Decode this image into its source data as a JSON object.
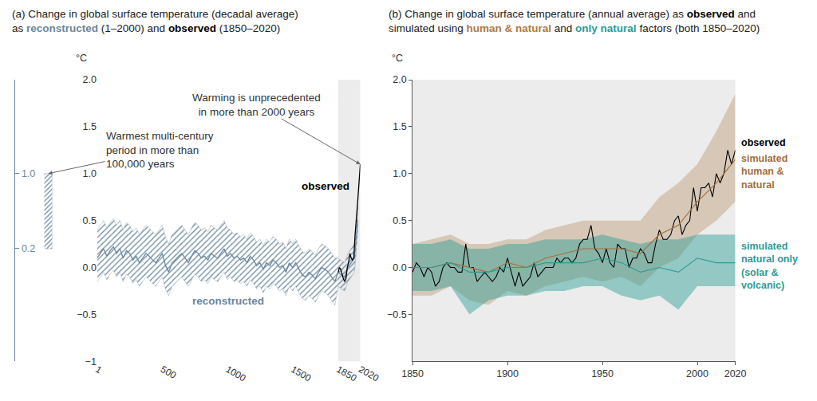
{
  "chart_data": [
    {
      "type": "line",
      "title": [
        [
          "(a) Change in global surface temperature (decadal average)"
        ],
        [
          "as ",
          {
            "text": "reconstructed",
            "color": "#6b879f"
          },
          " (1–2000) and ",
          {
            "text": "observed",
            "color": "#000000"
          },
          " (1850–2020)"
        ]
      ],
      "ylabel": "°C",
      "xlim": [
        1,
        2020
      ],
      "xticks": [
        1,
        500,
        1000,
        1500,
        1850,
        2020
      ],
      "ylim": [
        -1,
        2
      ],
      "yticks": [
        {
          "value": -1,
          "label": "−1"
        },
        {
          "value": -0.5,
          "label": "−0.5"
        },
        {
          "value": 0,
          "label": "0.0"
        },
        {
          "value": 0.5,
          "label": "0.5"
        },
        {
          "value": 1,
          "label": "1.0"
        },
        {
          "value": 1.5,
          "label": "1.5"
        },
        {
          "value": 2,
          "label": "2.0"
        }
      ],
      "shaded_period": [
        1850,
        2020
      ],
      "annotations": [
        "Warming is unprecedented in more than 2000 years",
        "Warmest multi-century period in more than 100,000 years"
      ],
      "range_bar": {
        "low": 0.2,
        "high": 1.0,
        "color": "#6b879f",
        "yticks": [
          {
            "value": 1,
            "label": "1.0"
          },
          {
            "value": 0.2,
            "label": "0.2"
          }
        ]
      },
      "series": [
        {
          "name": "reconstructed",
          "color": "#6b879f",
          "x": [
            1,
            25,
            50,
            75,
            100,
            125,
            150,
            175,
            200,
            225,
            250,
            275,
            300,
            325,
            350,
            375,
            400,
            425,
            450,
            475,
            500,
            525,
            550,
            575,
            600,
            625,
            650,
            675,
            700,
            725,
            750,
            775,
            800,
            825,
            850,
            875,
            900,
            925,
            950,
            975,
            1000,
            1025,
            1050,
            1075,
            1100,
            1125,
            1150,
            1175,
            1200,
            1225,
            1250,
            1275,
            1300,
            1325,
            1350,
            1375,
            1400,
            1425,
            1450,
            1475,
            1500,
            1525,
            1550,
            1575,
            1600,
            1625,
            1650,
            1675,
            1700,
            1725,
            1750,
            1775,
            1800,
            1825,
            1850,
            1875,
            1900,
            1925,
            1950,
            1975,
            2000
          ],
          "values": [
            0.1,
            0.15,
            0.2,
            0.12,
            0.18,
            0.22,
            0.15,
            0.2,
            0.1,
            0.18,
            0.15,
            0.08,
            0.12,
            0.05,
            0.1,
            0.15,
            0.12,
            0.08,
            0.05,
            0.1,
            0.15,
            0.02,
            -0.05,
            0.05,
            0.08,
            0.12,
            0.15,
            0.1,
            0.05,
            0.12,
            0.18,
            0.15,
            0.1,
            0.12,
            0.08,
            0.15,
            0.12,
            0.1,
            0.15,
            0.2,
            0.12,
            0.15,
            0.1,
            0.12,
            0.08,
            0.1,
            0.05,
            0.12,
            0.08,
            0.02,
            0.05,
            -0.02,
            0.05,
            0.02,
            0.08,
            0.05,
            0,
            0.02,
            -0.05,
            0.05,
            0,
            0.05,
            -0.02,
            -0.08,
            -0.1,
            -0.05,
            -0.08,
            -0.12,
            -0.05,
            0,
            -0.02,
            -0.05,
            -0.1,
            -0.15,
            -0.05,
            -0.08,
            -0.1,
            0,
            0.05,
            0.1,
            0.5
          ],
          "low": [
            -0.15,
            -0.1,
            -0.05,
            -0.13,
            -0.07,
            -0.03,
            -0.1,
            -0.05,
            -0.15,
            -0.07,
            -0.1,
            -0.17,
            -0.13,
            -0.2,
            -0.15,
            -0.1,
            -0.13,
            -0.17,
            -0.2,
            -0.15,
            -0.1,
            -0.23,
            -0.3,
            -0.2,
            -0.17,
            -0.13,
            -0.1,
            -0.15,
            -0.2,
            -0.13,
            -0.07,
            -0.1,
            -0.15,
            -0.13,
            -0.17,
            -0.1,
            -0.13,
            -0.15,
            -0.1,
            -0.05,
            -0.13,
            -0.1,
            -0.15,
            -0.13,
            -0.17,
            -0.15,
            -0.2,
            -0.13,
            -0.17,
            -0.23,
            -0.2,
            -0.27,
            -0.2,
            -0.23,
            -0.17,
            -0.2,
            -0.25,
            -0.23,
            -0.3,
            -0.2,
            -0.25,
            -0.2,
            -0.27,
            -0.33,
            -0.35,
            -0.3,
            -0.33,
            -0.37,
            -0.3,
            -0.25,
            -0.27,
            -0.3,
            -0.35,
            -0.4,
            -0.2,
            -0.23,
            -0.25,
            -0.15,
            -0.1,
            -0.05,
            0.35
          ],
          "high": [
            0.4,
            0.45,
            0.5,
            0.42,
            0.48,
            0.52,
            0.45,
            0.5,
            0.4,
            0.48,
            0.45,
            0.38,
            0.42,
            0.35,
            0.4,
            0.45,
            0.42,
            0.38,
            0.35,
            0.4,
            0.45,
            0.32,
            0.25,
            0.35,
            0.38,
            0.42,
            0.45,
            0.4,
            0.35,
            0.42,
            0.48,
            0.45,
            0.4,
            0.42,
            0.38,
            0.45,
            0.42,
            0.4,
            0.45,
            0.5,
            0.42,
            0.4,
            0.35,
            0.37,
            0.33,
            0.35,
            0.3,
            0.37,
            0.33,
            0.27,
            0.3,
            0.23,
            0.3,
            0.27,
            0.33,
            0.3,
            0.25,
            0.27,
            0.2,
            0.3,
            0.25,
            0.3,
            0.23,
            0.17,
            0.15,
            0.2,
            0.17,
            0.13,
            0.2,
            0.25,
            0.23,
            0.2,
            0.15,
            0.1,
            0.1,
            0.07,
            0.05,
            0.15,
            0.2,
            0.25,
            0.65
          ]
        },
        {
          "name": "observed",
          "color": "#000000",
          "x": [
            1850,
            1860,
            1870,
            1880,
            1890,
            1900,
            1910,
            1920,
            1930,
            1940,
            1950,
            1960,
            1970,
            1980,
            1990,
            2000,
            2010,
            2020
          ],
          "values": [
            -0.05,
            0,
            -0.02,
            -0.08,
            -0.12,
            -0.15,
            -0.12,
            0,
            0.05,
            0.15,
            0.1,
            0.08,
            0.1,
            0.35,
            0.5,
            0.7,
            0.9,
            1.1
          ]
        }
      ]
    },
    {
      "type": "line",
      "title": [
        [
          "(b) Change in global surface temperature (annual average) as ",
          {
            "text": "observed",
            "color": "#000000"
          },
          " and"
        ],
        [
          "simulated using ",
          {
            "text": "human & natural",
            "color": "#b27a42"
          },
          " and ",
          {
            "text": "only natural",
            "color": "#2a9d95"
          },
          " factors (both 1850–2020)"
        ]
      ],
      "ylabel": "°C",
      "xlim": [
        1850,
        2020
      ],
      "xticks": [
        1850,
        1900,
        1950,
        2000,
        2020
      ],
      "ylim": [
        -1,
        2
      ],
      "yticks": [
        {
          "value": -0.5,
          "label": "−0.5"
        },
        {
          "value": 0,
          "label": "0.0"
        },
        {
          "value": 0.5,
          "label": "0.5"
        },
        {
          "value": 1,
          "label": "1.0"
        },
        {
          "value": 1.5,
          "label": "1.5"
        },
        {
          "value": 2,
          "label": "2.0"
        }
      ],
      "series": [
        {
          "name": "observed",
          "color": "#000000",
          "x": [
            1850,
            1852,
            1854,
            1856,
            1858,
            1860,
            1862,
            1864,
            1866,
            1868,
            1870,
            1872,
            1874,
            1876,
            1878,
            1880,
            1882,
            1884,
            1886,
            1888,
            1890,
            1892,
            1894,
            1896,
            1898,
            1900,
            1902,
            1904,
            1906,
            1908,
            1910,
            1912,
            1914,
            1916,
            1918,
            1920,
            1922,
            1924,
            1926,
            1928,
            1930,
            1932,
            1934,
            1936,
            1938,
            1940,
            1942,
            1944,
            1946,
            1948,
            1950,
            1952,
            1954,
            1956,
            1958,
            1960,
            1962,
            1964,
            1966,
            1968,
            1970,
            1972,
            1974,
            1976,
            1978,
            1980,
            1982,
            1984,
            1986,
            1988,
            1990,
            1992,
            1994,
            1996,
            1998,
            2000,
            2002,
            2004,
            2006,
            2008,
            2010,
            2012,
            2014,
            2016,
            2018,
            2020
          ],
          "values": [
            -0.05,
            0.05,
            0,
            -0.1,
            0,
            -0.05,
            -0.2,
            -0.15,
            0,
            0.05,
            0,
            0,
            -0.05,
            -0.05,
            0.25,
            0,
            0,
            -0.15,
            -0.1,
            -0.05,
            -0.1,
            -0.15,
            -0.1,
            0,
            -0.05,
            0.1,
            -0.05,
            -0.2,
            -0.05,
            -0.2,
            -0.15,
            -0.1,
            0.05,
            -0.1,
            -0.05,
            0,
            0,
            0,
            0.1,
            0.05,
            0.1,
            0.1,
            0.05,
            0.1,
            0.25,
            0.3,
            0.3,
            0.45,
            0.2,
            0.15,
            0.05,
            0.2,
            0.05,
            0,
            0.25,
            0.2,
            0.2,
            0,
            0.1,
            0.1,
            0.2,
            0.15,
            0.05,
            0.05,
            0.25,
            0.4,
            0.3,
            0.3,
            0.35,
            0.5,
            0.55,
            0.35,
            0.45,
            0.5,
            0.85,
            0.6,
            0.85,
            0.85,
            0.9,
            0.75,
            1.0,
            0.9,
            1.0,
            1.25,
            1.1,
            1.25
          ]
        },
        {
          "name": "simulated human & natural",
          "color": "#a36f3d",
          "x": [
            1850,
            1860,
            1870,
            1880,
            1890,
            1900,
            1910,
            1920,
            1930,
            1940,
            1950,
            1960,
            1970,
            1980,
            1990,
            2000,
            2010,
            2020
          ],
          "values": [
            0,
            0,
            0.05,
            0,
            -0.05,
            0.05,
            0,
            0.1,
            0.15,
            0.2,
            0.2,
            0.2,
            0.15,
            0.35,
            0.45,
            0.7,
            0.9,
            1.15
          ],
          "low": [
            -0.3,
            -0.3,
            -0.2,
            -0.35,
            -0.4,
            -0.25,
            -0.3,
            -0.2,
            -0.15,
            -0.1,
            -0.15,
            -0.1,
            -0.2,
            0,
            0.1,
            0.35,
            0.5,
            0.7
          ],
          "high": [
            0.25,
            0.3,
            0.35,
            0.25,
            0.25,
            0.3,
            0.3,
            0.4,
            0.45,
            0.5,
            0.5,
            0.5,
            0.5,
            0.75,
            0.9,
            1.1,
            1.45,
            1.85
          ]
        },
        {
          "name": "simulated natural only (solar & volcanic)",
          "color": "#2a9d95",
          "x": [
            1850,
            1860,
            1870,
            1880,
            1890,
            1900,
            1910,
            1920,
            1930,
            1940,
            1950,
            1960,
            1970,
            1980,
            1990,
            2000,
            2010,
            2020
          ],
          "values": [
            0,
            0,
            0.05,
            -0.05,
            -0.05,
            0,
            0,
            0.05,
            0.05,
            0.05,
            0.1,
            0.05,
            -0.05,
            0,
            -0.05,
            0.1,
            0.05,
            0.05
          ],
          "low": [
            -0.25,
            -0.25,
            -0.2,
            -0.5,
            -0.35,
            -0.3,
            -0.3,
            -0.25,
            -0.25,
            -0.2,
            -0.2,
            -0.3,
            -0.35,
            -0.3,
            -0.45,
            -0.2,
            -0.2,
            -0.2
          ],
          "high": [
            0.25,
            0.25,
            0.3,
            0.2,
            0.2,
            0.25,
            0.25,
            0.3,
            0.3,
            0.3,
            0.35,
            0.3,
            0.25,
            0.3,
            0.3,
            0.35,
            0.35,
            0.35
          ]
        }
      ]
    }
  ]
}
